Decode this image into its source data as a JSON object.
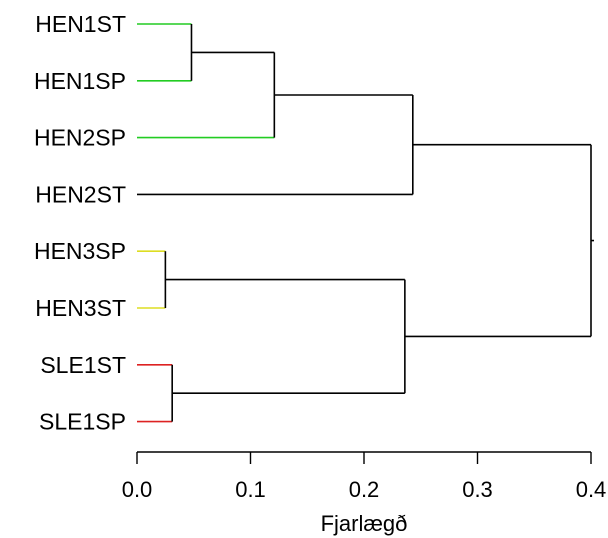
{
  "chart_data": {
    "type": "dendrogram",
    "orientation": "horizontal",
    "xlabel": "Fjarlægð",
    "xlim": [
      0.0,
      0.4
    ],
    "xticks": [
      {
        "value": 0.0,
        "label": "0.0"
      },
      {
        "value": 0.1,
        "label": "0.1"
      },
      {
        "value": 0.2,
        "label": "0.2"
      },
      {
        "value": 0.3,
        "label": "0.3"
      },
      {
        "value": 0.4,
        "label": "0.4"
      }
    ],
    "leaves": [
      {
        "id": "HEN1ST",
        "label": "HEN1ST",
        "color": "#22cc22"
      },
      {
        "id": "HEN1SP",
        "label": "HEN1SP",
        "color": "#22cc22"
      },
      {
        "id": "HEN2SP",
        "label": "HEN2SP",
        "color": "#22cc22"
      },
      {
        "id": "HEN2ST",
        "label": "HEN2ST",
        "color": "#000000"
      },
      {
        "id": "HEN3SP",
        "label": "HEN3SP",
        "color": "#dddd22"
      },
      {
        "id": "HEN3ST",
        "label": "HEN3ST",
        "color": "#dddd22"
      },
      {
        "id": "SLE1ST",
        "label": "SLE1ST",
        "color": "#dd2222"
      },
      {
        "id": "SLE1SP",
        "label": "SLE1SP",
        "color": "#dd2222"
      }
    ],
    "merges": [
      {
        "id": "m1",
        "left": "HEN1ST",
        "right": "HEN1SP",
        "height": 0.048
      },
      {
        "id": "m2",
        "left": "m1",
        "right": "HEN2SP",
        "height": 0.121
      },
      {
        "id": "m3",
        "left": "m2",
        "right": "HEN2ST",
        "height": 0.243
      },
      {
        "id": "m4",
        "left": "HEN3SP",
        "right": "HEN3ST",
        "height": 0.025
      },
      {
        "id": "m5",
        "left": "SLE1ST",
        "right": "SLE1SP",
        "height": 0.031
      },
      {
        "id": "m6",
        "left": "m4",
        "right": "m5",
        "height": 0.236
      },
      {
        "id": "m7",
        "left": "m3",
        "right": "m6",
        "height": 0.4
      }
    ],
    "root_stub": true
  }
}
